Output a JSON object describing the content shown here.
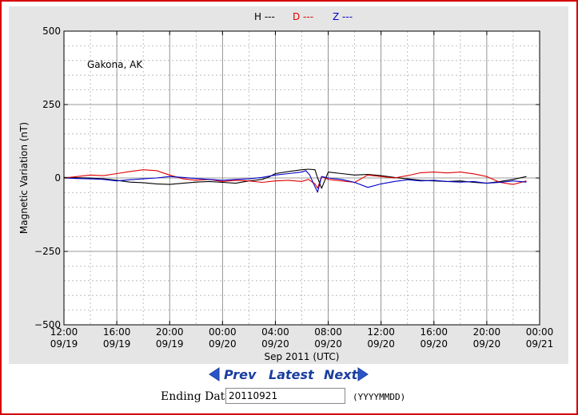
{
  "colors": {
    "H": "#000000",
    "D": "#e00000",
    "Z": "#0000c8",
    "nav": "#1a3e9e",
    "frame": "#d40000"
  },
  "chart_data": {
    "type": "line",
    "station": "Gakona, AK",
    "ylabel": "Magnetic Variation (nT)",
    "xlabel": "Sep 2011 (UTC)",
    "ylim": [
      -500,
      500
    ],
    "yticks": [
      "500",
      "250",
      "0",
      "−250",
      "−500"
    ],
    "ytick_values": [
      500,
      250,
      0,
      -250,
      -500
    ],
    "xlim_hours": [
      0,
      36
    ],
    "xticks": [
      {
        "time": "12:00",
        "date": "09/19"
      },
      {
        "time": "16:00",
        "date": "09/19"
      },
      {
        "time": "20:00",
        "date": "09/19"
      },
      {
        "time": "00:00",
        "date": "09/20"
      },
      {
        "time": "04:00",
        "date": "09/20"
      },
      {
        "time": "08:00",
        "date": "09/20"
      },
      {
        "time": "12:00",
        "date": "09/20"
      },
      {
        "time": "16:00",
        "date": "09/20"
      },
      {
        "time": "20:00",
        "date": "09/20"
      },
      {
        "time": "00:00",
        "date": "09/21"
      }
    ],
    "xtick_hours": [
      0,
      4,
      8,
      12,
      16,
      20,
      24,
      28,
      32,
      36
    ],
    "grid": true,
    "legend_position": "top-center",
    "series": [
      {
        "name": "H ---",
        "color": "#000000",
        "x": [
          0,
          2,
          3,
          4,
          5,
          6,
          7,
          8,
          9,
          10,
          11,
          12,
          13,
          14,
          15,
          15.5,
          16,
          17,
          18,
          18.5,
          19,
          19.2,
          19.5,
          20,
          21,
          22,
          23,
          24,
          25,
          26,
          27,
          28,
          29,
          30,
          31,
          32,
          33,
          34,
          35
        ],
        "y": [
          2,
          0,
          -3,
          -8,
          -14,
          -16,
          -20,
          -22,
          -18,
          -14,
          -12,
          -15,
          -18,
          -10,
          -5,
          3,
          15,
          22,
          28,
          30,
          28,
          0,
          -35,
          20,
          15,
          10,
          12,
          8,
          2,
          -3,
          -8,
          -10,
          -12,
          -10,
          -15,
          -18,
          -12,
          -5,
          5
        ]
      },
      {
        "name": "D ---",
        "color": "#e00000",
        "x": [
          0,
          1,
          2,
          3,
          4,
          5,
          6,
          7,
          8,
          9,
          10,
          11,
          12,
          13,
          14,
          15,
          16,
          17,
          18,
          18.5,
          19,
          19.2,
          19.5,
          20,
          21,
          22,
          23,
          24,
          25,
          26,
          27,
          28,
          29,
          30,
          31,
          32,
          33,
          34,
          35
        ],
        "y": [
          0,
          5,
          10,
          8,
          15,
          22,
          28,
          25,
          10,
          -3,
          -8,
          -5,
          -12,
          -8,
          -10,
          -15,
          -10,
          -8,
          -12,
          -5,
          -20,
          -35,
          5,
          -5,
          -10,
          -15,
          10,
          5,
          0,
          8,
          18,
          20,
          17,
          20,
          14,
          5,
          -15,
          -22,
          -10
        ]
      },
      {
        "name": "Z ---",
        "color": "#0000c8",
        "x": [
          0,
          1,
          2,
          3,
          4,
          5,
          6,
          7,
          8,
          9,
          10,
          11,
          12,
          13,
          14,
          15,
          16,
          17,
          18,
          18.3,
          18.6,
          19,
          19.2,
          19.5,
          20,
          21,
          22,
          23,
          24,
          25,
          26,
          27,
          28,
          29,
          30,
          31,
          32,
          33,
          34,
          35
        ],
        "y": [
          0,
          -2,
          -3,
          -5,
          -10,
          -6,
          -3,
          0,
          5,
          2,
          -2,
          -5,
          -8,
          -5,
          -3,
          2,
          10,
          15,
          20,
          25,
          10,
          -30,
          -48,
          5,
          0,
          -5,
          -15,
          -32,
          -20,
          -12,
          -6,
          -10,
          -8,
          -12,
          -14,
          -12,
          -18,
          -15,
          -10,
          -14
        ]
      }
    ]
  },
  "nav": {
    "prev": "Prev",
    "latest": "Latest",
    "next": "Next"
  },
  "form": {
    "label": "Ending Date:",
    "value": "20110921",
    "hint": "(YYYYMMDD)"
  }
}
